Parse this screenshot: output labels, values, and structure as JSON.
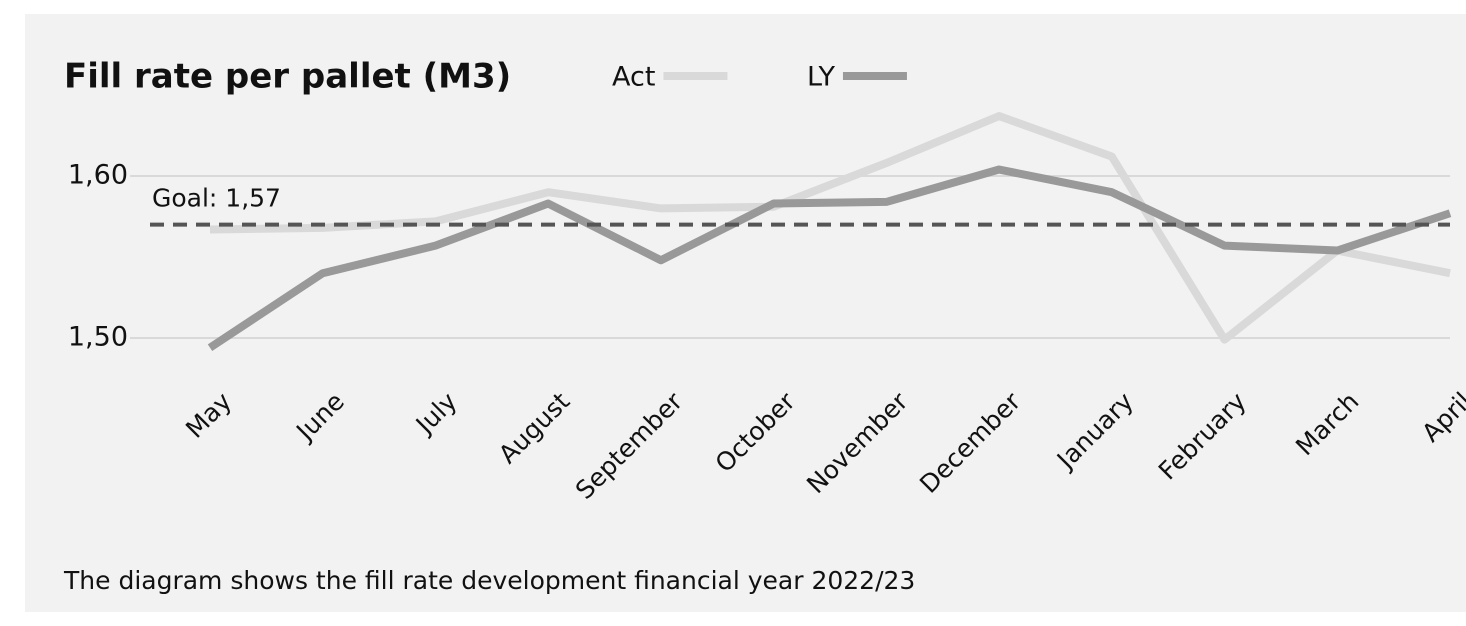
{
  "chart_data": {
    "type": "line",
    "title": "Fill rate per pallet (M3)",
    "subtitle": "The diagram shows the fill rate development financial year 2022/23",
    "categories": [
      "May",
      "June",
      "July",
      "August",
      "September",
      "October",
      "November",
      "December",
      "January",
      "February",
      "March",
      "April"
    ],
    "series": [
      {
        "name": "Act",
        "color": "#d9d9d9",
        "values": [
          1.567,
          1.568,
          1.572,
          1.59,
          1.58,
          1.581,
          1.608,
          1.637,
          1.612,
          1.499,
          1.554,
          1.54
        ]
      },
      {
        "name": "LY",
        "color": "#999999",
        "values": [
          1.494,
          1.54,
          1.557,
          1.583,
          1.548,
          1.583,
          1.584,
          1.604,
          1.59,
          1.557,
          1.554,
          1.577
        ]
      }
    ],
    "goal": {
      "value": 1.57,
      "label": "Goal: 1,57"
    },
    "ylim": [
      1.47,
      1.65
    ],
    "yticks": [
      {
        "value": 1.5,
        "label": "1,50"
      },
      {
        "value": 1.6,
        "label": "1,60"
      }
    ],
    "grid": true,
    "legend": "top"
  }
}
